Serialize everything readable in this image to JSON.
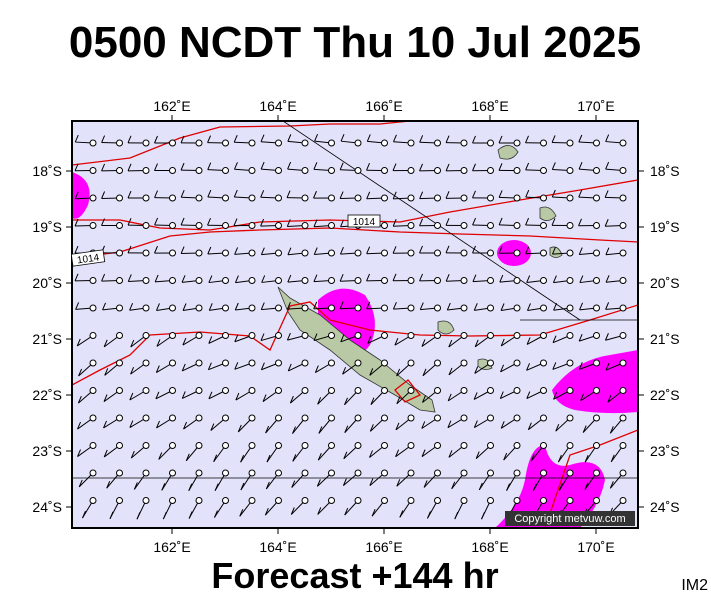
{
  "title": "0500 NCDT Thu 10 Jul 2025",
  "footer": "Forecast +144 hr",
  "tag": "IM2",
  "copyright": "Copyright metvuw.com",
  "map": {
    "lon_labels": [
      {
        "value": 162,
        "label": "162˚E"
      },
      {
        "value": 164,
        "label": "164˚E"
      },
      {
        "value": 166,
        "label": "166˚E"
      },
      {
        "value": 168,
        "label": "168˚E"
      },
      {
        "value": 170,
        "label": "170˚E"
      }
    ],
    "lat_labels": [
      {
        "value": -18,
        "label": "18˚S"
      },
      {
        "value": -19,
        "label": "19˚S"
      },
      {
        "value": -20,
        "label": "20˚S"
      },
      {
        "value": -21,
        "label": "21˚S"
      },
      {
        "value": -22,
        "label": "22˚S"
      },
      {
        "value": -23,
        "label": "23˚S"
      },
      {
        "value": -24,
        "label": "24˚S"
      }
    ],
    "isobar_labels": [
      "1014",
      "1014"
    ]
  }
}
